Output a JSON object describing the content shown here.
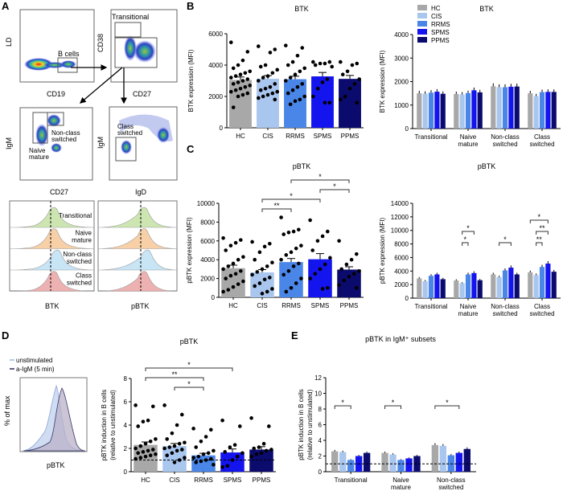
{
  "panel_letters": [
    "A",
    "B",
    "C",
    "D",
    "E"
  ],
  "panel_a": {
    "plot1": {
      "ylabel": "LD",
      "xlabel": "CD19",
      "gate": "B cells"
    },
    "plot2": {
      "ylabel": "CD38",
      "xlabel": "CD27",
      "gate": "Transitional"
    },
    "plot3": {
      "ylabel": "IgM",
      "xlabel": "CD27",
      "gate_naive": [
        "Naive",
        "mature"
      ],
      "gate_nonclass": [
        "Non-class",
        "switched"
      ]
    },
    "plot4": {
      "ylabel": "IgM",
      "xlabel": "IgD",
      "gate": [
        "Class",
        "switched"
      ]
    },
    "histograms": {
      "rows": [
        [
          "Transitional"
        ],
        [
          "Naive",
          "mature"
        ],
        [
          "Non-class",
          "switched"
        ],
        [
          "Class",
          "switched"
        ]
      ],
      "row_colors": [
        "#c8e3a8",
        "#f6cb9e",
        "#c2e2f5",
        "#eba9a9"
      ],
      "left_xlabel": "BTK",
      "right_xlabel": "pBTK"
    }
  },
  "panel_d_hist": {
    "legend": [
      "unstimulated",
      "a-IgM (5 min)"
    ],
    "legend_colors": [
      "#9fb6e8",
      "#2a2a66"
    ],
    "ylabel": "% of max",
    "xlabel": "pBTK"
  },
  "colors": {
    "HC": "#a8a8a8",
    "CIS": "#a9c6ef",
    "RRMS": "#4a86e8",
    "SPMS": "#1414ee",
    "PPMS": "#0b0b6e"
  },
  "chart_data": [
    {
      "type": "bar",
      "panel": "B",
      "title": "BTK",
      "ylabel": "BTK expression (MFI)",
      "categories": [
        "HC",
        "CIS",
        "RRMS",
        "SPMS",
        "PPMS"
      ],
      "values": [
        3050,
        3130,
        3100,
        3280,
        3120
      ],
      "sem": [
        190,
        200,
        190,
        250,
        220
      ],
      "points": [
        [
          5450,
          4850,
          4300,
          4000,
          3800,
          3600,
          3500,
          3400,
          3300,
          3200,
          3100,
          3000,
          2900,
          2800,
          2700,
          2600,
          2500,
          2400,
          2300,
          2200,
          2100,
          2000,
          1300
        ],
        [
          5200,
          5000,
          4800,
          4000,
          3900,
          3700,
          3500,
          3300,
          3200,
          3000,
          2800,
          2600,
          2500,
          2400,
          2300,
          2200,
          2100,
          2000,
          1900,
          1800
        ],
        [
          5250,
          5100,
          4600,
          4200,
          4000,
          3800,
          3600,
          3400,
          3200,
          3000,
          2800,
          2600,
          2400,
          2200,
          2000,
          1800,
          1700,
          1500
        ],
        [
          4200,
          4200,
          4100,
          4100,
          4000,
          3900,
          3100,
          2900,
          2500,
          2000,
          1600,
          1600
        ],
        [
          4200,
          4100,
          4000,
          3600,
          3400,
          3100,
          2800,
          2500,
          2000,
          1800,
          1600
        ]
      ],
      "ylim": [
        0,
        6000
      ],
      "yticks": [
        0,
        2000,
        4000,
        6000
      ],
      "significance": []
    },
    {
      "type": "grouped_bar",
      "panel": "B",
      "title": "BTK",
      "ylabel": "BTK expression (MFI)",
      "legend": [
        "HC",
        "CIS",
        "RRMS",
        "SPMS",
        "PPMS"
      ],
      "legend_position": "top-left",
      "groups": [
        [
          "Transitional"
        ],
        [
          "Naive",
          "mature"
        ],
        [
          "Non-class",
          "switched"
        ],
        [
          "Class",
          "switched"
        ]
      ],
      "series": [
        {
          "name": "HC",
          "values": [
            1500,
            1470,
            1800,
            1500
          ]
        },
        {
          "name": "CIS",
          "values": [
            1480,
            1450,
            1760,
            1380
          ]
        },
        {
          "name": "RRMS",
          "values": [
            1530,
            1510,
            1760,
            1550
          ]
        },
        {
          "name": "SPMS",
          "values": [
            1570,
            1630,
            1780,
            1560
          ]
        },
        {
          "name": "PPMS",
          "values": [
            1480,
            1540,
            1790,
            1560
          ]
        }
      ],
      "ylim": [
        0,
        4000
      ],
      "yticks": [
        0,
        1000,
        2000,
        3000,
        4000
      ],
      "significance": []
    },
    {
      "type": "bar",
      "panel": "C",
      "title": "pBTK",
      "ylabel": "pBTK expression (MFI)",
      "categories": [
        "HC",
        "CIS",
        "RRMS",
        "SPMS",
        "PPMS"
      ],
      "values": [
        3100,
        2650,
        3750,
        4050,
        2950
      ],
      "sem": [
        320,
        300,
        380,
        600,
        300
      ],
      "points": [
        [
          6300,
          6100,
          5800,
          5500,
          5000,
          4300,
          4000,
          3600,
          3300,
          3000,
          2800,
          2500,
          2300,
          2000,
          1700,
          1400,
          1100,
          800,
          600
        ],
        [
          5900,
          5700,
          5400,
          4800,
          4000,
          3700,
          3300,
          3000,
          2700,
          2400,
          2100,
          1900,
          1500,
          1200,
          900,
          600,
          400
        ],
        [
          8500,
          7200,
          7000,
          6900,
          6700,
          5500,
          5200,
          4800,
          4500,
          4000,
          3600,
          3300,
          2800,
          2400,
          2000,
          1500,
          1000,
          600
        ],
        [
          8200,
          7000,
          6500,
          6000,
          5000,
          4200,
          3500,
          3000,
          2500,
          2000,
          1000,
          900
        ],
        [
          6000,
          4600,
          4000,
          3500,
          3000,
          2800,
          2500,
          2200,
          1800,
          1300,
          1000
        ]
      ],
      "ylim": [
        0,
        10000
      ],
      "yticks": [
        0,
        2000,
        4000,
        6000,
        8000,
        10000
      ],
      "significance": [
        {
          "from": 1,
          "to": 2,
          "label": "**"
        },
        {
          "from": 1,
          "to": 3,
          "label": "*"
        },
        {
          "from": 3,
          "to": 4,
          "label": "*"
        },
        {
          "from": 2,
          "to": 4,
          "label": "*"
        }
      ]
    },
    {
      "type": "grouped_bar",
      "panel": "C",
      "title": "pBTK",
      "ylabel": "pBTK expression (MFI)",
      "groups": [
        [
          "Transitional"
        ],
        [
          "Naive",
          "mature"
        ],
        [
          "Non-class",
          "switched"
        ],
        [
          "Class",
          "switched"
        ]
      ],
      "series": [
        {
          "name": "HC",
          "values": [
            2900,
            2600,
            3500,
            3800
          ]
        },
        {
          "name": "CIS",
          "values": [
            2500,
            2200,
            3100,
            3400
          ]
        },
        {
          "name": "RRMS",
          "values": [
            3300,
            3500,
            4100,
            4600
          ]
        },
        {
          "name": "SPMS",
          "values": [
            3500,
            3700,
            4500,
            5100
          ]
        },
        {
          "name": "PPMS",
          "values": [
            2800,
            2650,
            3500,
            3900
          ]
        }
      ],
      "ylim": [
        0,
        14000
      ],
      "yticks": [
        0,
        2000,
        4000,
        6000,
        8000,
        10000,
        12000,
        14000
      ],
      "significance": [
        {
          "group": 1,
          "from": 1,
          "to": 2,
          "label": "*"
        },
        {
          "group": 1,
          "from": 1,
          "to": 3,
          "label": "*"
        },
        {
          "group": 2,
          "from": 1,
          "to": 3,
          "label": "*"
        },
        {
          "group": 3,
          "from": 1,
          "to": 2,
          "label": "**"
        },
        {
          "group": 3,
          "from": 1,
          "to": 3,
          "label": "**"
        },
        {
          "group": 3,
          "from": 0,
          "to": 3,
          "label": "*"
        }
      ]
    },
    {
      "type": "bar",
      "panel": "D",
      "title": "pBTK",
      "ylabel": [
        "pBTK induction in B cells",
        "(relative to unstimulated)"
      ],
      "categories": [
        "HC",
        "CIS",
        "RRMS",
        "SPMS",
        "PPMS"
      ],
      "values": [
        2.3,
        2.2,
        1.4,
        1.65,
        1.9
      ],
      "sem": [
        0.25,
        0.22,
        0.18,
        0.3,
        0.25
      ],
      "points": [
        [
          5.7,
          5.6,
          4.4,
          4.3,
          3.9,
          2.8,
          2.6,
          2.4,
          2.2,
          2.0,
          1.9,
          1.8,
          1.7,
          1.6,
          1.5,
          1.4,
          1.3,
          1.2,
          1.1
        ],
        [
          5.7,
          4.9,
          4.0,
          3.3,
          2.8,
          2.5,
          2.4,
          2.2,
          2.1,
          2.0,
          1.9,
          1.8,
          1.6,
          1.4,
          1.2,
          1.0,
          0.8
        ],
        [
          3.7,
          3.6,
          3.0,
          2.6,
          2.1,
          1.8,
          1.6,
          1.5,
          1.3,
          1.2,
          1.1,
          1.0,
          0.9,
          0.8,
          0.6
        ],
        [
          4.4,
          3.9,
          2.3,
          2.1,
          1.7,
          1.6,
          1.3,
          1.0,
          0.5,
          0.4
        ],
        [
          4.6,
          3.9,
          2.4,
          2.1,
          2.0,
          1.9,
          1.8,
          1.6,
          1.5,
          1.3
        ]
      ],
      "reference_line": 1,
      "ylim": [
        0,
        8
      ],
      "yticks": [
        0,
        2,
        4,
        6,
        8
      ],
      "significance": [
        {
          "from": 1,
          "to": 2,
          "label": "*"
        },
        {
          "from": 0,
          "to": 2,
          "label": "**"
        },
        {
          "from": 0,
          "to": 3,
          "label": "*"
        }
      ]
    },
    {
      "type": "grouped_bar",
      "panel": "E",
      "title": "pBTK in IgM⁺ subsets",
      "ylabel": [
        "pBTK induction in B cells",
        "(relative to unstimulated)"
      ],
      "groups": [
        [
          "Transitional"
        ],
        [
          "Naive",
          "mature"
        ],
        [
          "Non-class",
          "switched"
        ]
      ],
      "series": [
        {
          "name": "HC",
          "values": [
            2.6,
            2.4,
            3.4
          ]
        },
        {
          "name": "CIS",
          "values": [
            2.5,
            2.2,
            3.3
          ]
        },
        {
          "name": "RRMS",
          "values": [
            1.5,
            1.5,
            2.1
          ]
        },
        {
          "name": "SPMS",
          "values": [
            2.0,
            1.7,
            2.4
          ]
        },
        {
          "name": "PPMS",
          "values": [
            2.4,
            2.0,
            2.9
          ]
        }
      ],
      "reference_line": 1,
      "ylim": [
        0,
        12
      ],
      "yticks": [
        0,
        2,
        4,
        6,
        8,
        10,
        12
      ],
      "significance": [
        {
          "group": 0,
          "from": 0,
          "to": 2,
          "label": "*"
        },
        {
          "group": 1,
          "from": 0,
          "to": 2,
          "label": "*"
        },
        {
          "group": 2,
          "from": 0,
          "to": 3,
          "label": "*"
        }
      ]
    }
  ]
}
